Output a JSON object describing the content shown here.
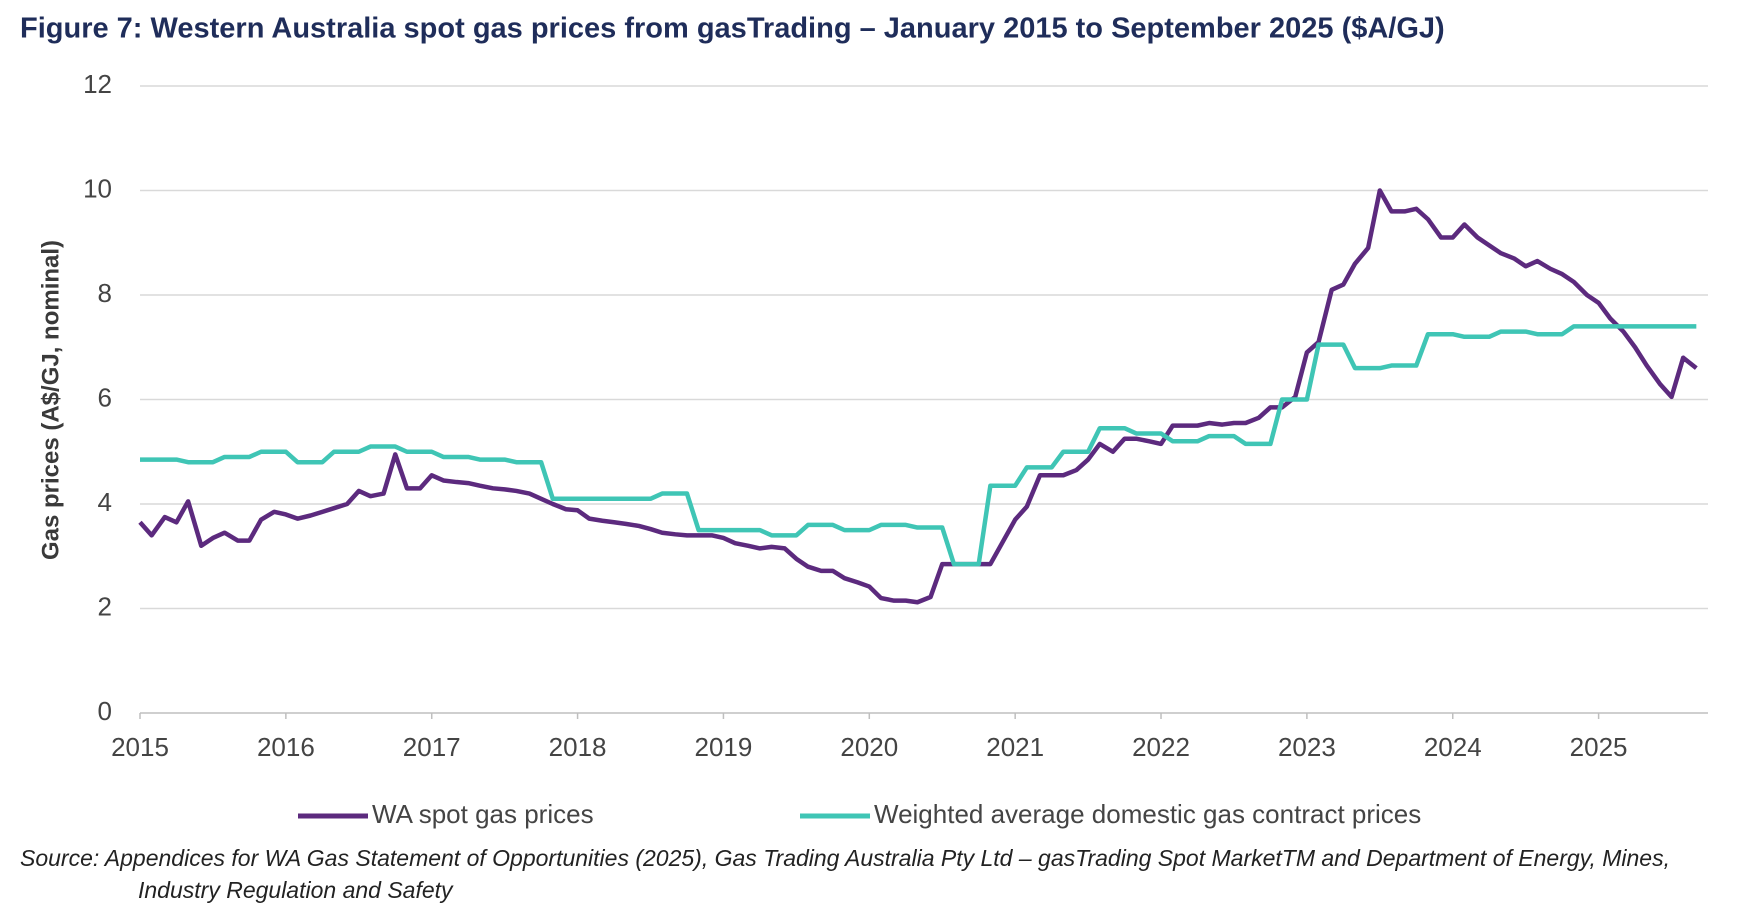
{
  "chart_data": {
    "type": "line",
    "title": "Figure 7: Western Australia spot gas prices from gasTrading – January 2015 to September 2025 ($A/GJ)",
    "y_label": "Gas prices (A$/GJ, nominal)",
    "source": "Source: Appendices for WA Gas Statement of Opportunities (2025), Gas Trading Australia Pty Ltd – gasTrading Spot MarketTM and Department of Energy, Mines, Industry Regulation and Safety",
    "xlim": [
      2015,
      2025.75
    ],
    "xticks": [
      2015,
      2016,
      2017,
      2018,
      2019,
      2020,
      2021,
      2022,
      2023,
      2024,
      2025
    ],
    "ylim": [
      0,
      12
    ],
    "yticks": [
      0,
      2,
      4,
      6,
      8,
      10,
      12
    ],
    "grid": true,
    "legend": "bottom",
    "x": [
      2015,
      2015.08,
      2015.17,
      2015.25,
      2015.33,
      2015.42,
      2015.5,
      2015.58,
      2015.67,
      2015.75,
      2015.83,
      2015.92,
      2016,
      2016.08,
      2016.17,
      2016.25,
      2016.33,
      2016.42,
      2016.5,
      2016.58,
      2016.67,
      2016.75,
      2016.83,
      2016.92,
      2017,
      2017.08,
      2017.17,
      2017.25,
      2017.33,
      2017.42,
      2017.5,
      2017.58,
      2017.67,
      2017.75,
      2017.83,
      2017.92,
      2018,
      2018.08,
      2018.17,
      2018.25,
      2018.33,
      2018.42,
      2018.5,
      2018.58,
      2018.67,
      2018.75,
      2018.83,
      2018.92,
      2019,
      2019.08,
      2019.17,
      2019.25,
      2019.33,
      2019.42,
      2019.5,
      2019.58,
      2019.67,
      2019.75,
      2019.83,
      2019.92,
      2020,
      2020.08,
      2020.17,
      2020.25,
      2020.33,
      2020.42,
      2020.5,
      2020.58,
      2020.67,
      2020.75,
      2020.83,
      2020.92,
      2021,
      2021.08,
      2021.17,
      2021.25,
      2021.33,
      2021.42,
      2021.5,
      2021.58,
      2021.67,
      2021.75,
      2021.83,
      2021.92,
      2022,
      2022.08,
      2022.17,
      2022.25,
      2022.33,
      2022.42,
      2022.5,
      2022.58,
      2022.67,
      2022.75,
      2022.83,
      2022.92,
      2023,
      2023.08,
      2023.17,
      2023.25,
      2023.33,
      2023.42,
      2023.5,
      2023.58,
      2023.67,
      2023.75,
      2023.83,
      2023.92,
      2024,
      2024.08,
      2024.17,
      2024.25,
      2024.33,
      2024.42,
      2024.5,
      2024.58,
      2024.67,
      2024.75,
      2024.83,
      2024.92,
      2025,
      2025.08,
      2025.17,
      2025.25,
      2025.33,
      2025.42,
      2025.5,
      2025.58,
      2025.67
    ],
    "series": [
      {
        "name": "WA spot gas prices",
        "color": "#5c2a7e",
        "values": [
          3.65,
          3.4,
          3.75,
          3.65,
          4.05,
          3.2,
          3.35,
          3.45,
          3.3,
          3.3,
          3.7,
          3.85,
          3.8,
          3.72,
          3.78,
          3.85,
          3.92,
          4.0,
          4.25,
          4.15,
          4.2,
          4.95,
          4.3,
          4.3,
          4.55,
          4.45,
          4.42,
          4.4,
          4.35,
          4.3,
          4.28,
          4.25,
          4.2,
          4.1,
          4.0,
          3.9,
          3.88,
          3.72,
          3.68,
          3.65,
          3.62,
          3.58,
          3.52,
          3.45,
          3.42,
          3.4,
          3.4,
          3.4,
          3.35,
          3.25,
          3.2,
          3.15,
          3.18,
          3.15,
          2.95,
          2.8,
          2.72,
          2.72,
          2.58,
          2.5,
          2.42,
          2.2,
          2.15,
          2.15,
          2.12,
          2.22,
          2.85,
          2.85,
          2.85,
          2.85,
          2.85,
          3.3,
          3.7,
          3.95,
          4.55,
          4.55,
          4.55,
          4.65,
          4.85,
          5.15,
          5.0,
          5.25,
          5.25,
          5.2,
          5.15,
          5.5,
          5.5,
          5.5,
          5.55,
          5.52,
          5.55,
          5.55,
          5.65,
          5.85,
          5.85,
          6.05,
          6.9,
          7.1,
          8.1,
          8.2,
          8.6,
          8.9,
          10.0,
          9.6,
          9.6,
          9.65,
          9.45,
          9.1,
          9.1,
          9.35,
          9.1,
          8.95,
          8.8,
          8.7,
          8.55,
          8.65,
          8.5,
          8.4,
          8.25,
          8.0,
          7.85,
          7.55,
          7.3,
          7.0,
          6.65,
          6.3,
          6.05,
          6.8,
          6.6
        ]
      },
      {
        "name": "Weighted average domestic gas contract prices",
        "color": "#3fc5b5",
        "values": [
          4.85,
          4.85,
          4.85,
          4.85,
          4.8,
          4.8,
          4.8,
          4.9,
          4.9,
          4.9,
          5.0,
          5.0,
          5.0,
          4.8,
          4.8,
          4.8,
          5.0,
          5.0,
          5.0,
          5.1,
          5.1,
          5.1,
          5.0,
          5.0,
          5.0,
          4.9,
          4.9,
          4.9,
          4.85,
          4.85,
          4.85,
          4.8,
          4.8,
          4.8,
          4.1,
          4.1,
          4.1,
          4.1,
          4.1,
          4.1,
          4.1,
          4.1,
          4.1,
          4.2,
          4.2,
          4.2,
          3.5,
          3.5,
          3.5,
          3.5,
          3.5,
          3.5,
          3.4,
          3.4,
          3.4,
          3.6,
          3.6,
          3.6,
          3.5,
          3.5,
          3.5,
          3.6,
          3.6,
          3.6,
          3.55,
          3.55,
          3.55,
          2.85,
          2.85,
          2.85,
          4.35,
          4.35,
          4.35,
          4.7,
          4.7,
          4.7,
          5.0,
          5.0,
          5.0,
          5.45,
          5.45,
          5.45,
          5.35,
          5.35,
          5.35,
          5.2,
          5.2,
          5.2,
          5.3,
          5.3,
          5.3,
          5.15,
          5.15,
          5.15,
          6.0,
          6.0,
          6.0,
          7.05,
          7.05,
          7.05,
          6.6,
          6.6,
          6.6,
          6.65,
          6.65,
          6.65,
          7.25,
          7.25,
          7.25,
          7.2,
          7.2,
          7.2,
          7.3,
          7.3,
          7.3,
          7.25,
          7.25,
          7.25,
          7.4,
          7.4,
          7.4,
          7.4,
          7.4,
          7.4,
          7.4,
          7.4,
          7.4,
          7.4,
          7.4
        ]
      }
    ]
  }
}
